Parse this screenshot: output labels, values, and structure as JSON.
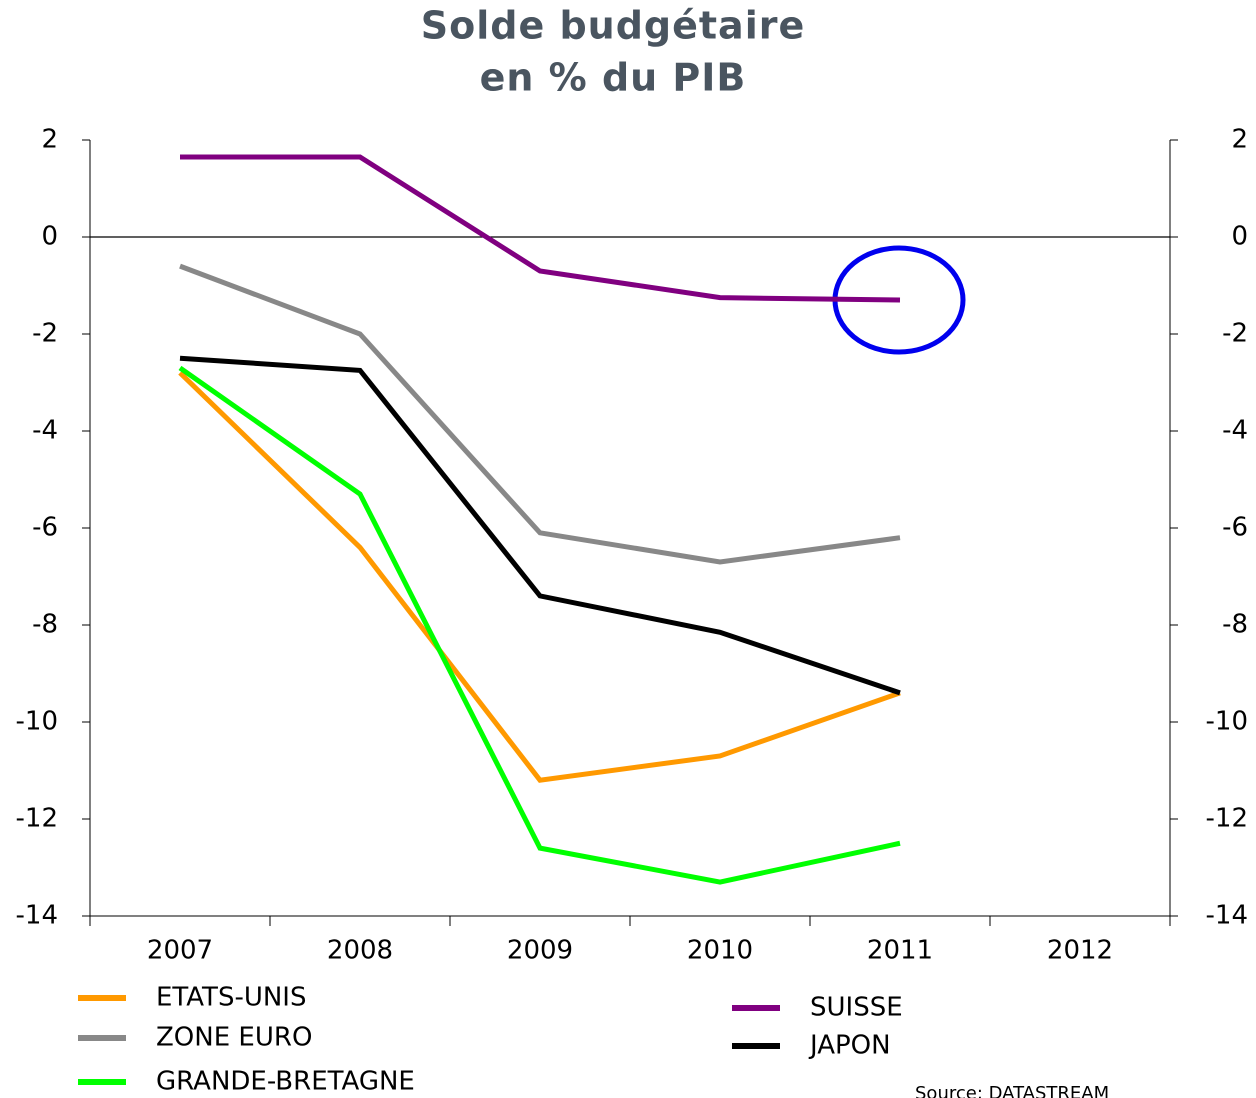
{
  "chart_data": {
    "type": "line",
    "title": "Solde budgétaire",
    "subtitle": "en % du PIB",
    "categories": [
      "2007",
      "2008",
      "2009",
      "2010",
      "2011",
      "2012"
    ],
    "series": [
      {
        "name": "ETATS-UNIS",
        "color": "#ff9900",
        "values": [
          -2.8,
          -6.4,
          -11.2,
          -10.7,
          -9.4,
          null
        ]
      },
      {
        "name": "ZONE EURO",
        "color": "#888888",
        "values": [
          -0.6,
          -2.0,
          -6.1,
          -6.7,
          -6.2,
          null
        ]
      },
      {
        "name": "GRANDE-BRETAGNE",
        "color": "#00ff00",
        "values": [
          -2.7,
          -5.3,
          -12.6,
          -13.3,
          -12.5,
          null
        ]
      },
      {
        "name": "SUISSE",
        "color": "#800080",
        "values": [
          1.65,
          1.65,
          -0.7,
          -1.25,
          -1.3,
          null
        ]
      },
      {
        "name": "JAPON",
        "color": "#000000",
        "values": [
          -2.5,
          -2.75,
          -7.4,
          -8.15,
          -9.4,
          null
        ]
      }
    ],
    "ylim": [
      -14,
      2
    ],
    "yticks": [
      -14,
      -12,
      -10,
      -8,
      -6,
      -4,
      -2,
      0,
      2
    ],
    "y2lim": [
      -14,
      2
    ],
    "y2ticks": [
      -14,
      -12,
      -10,
      -8,
      -6,
      -4,
      -2,
      0,
      2
    ],
    "source": "Source:  DATASTREAM"
  }
}
